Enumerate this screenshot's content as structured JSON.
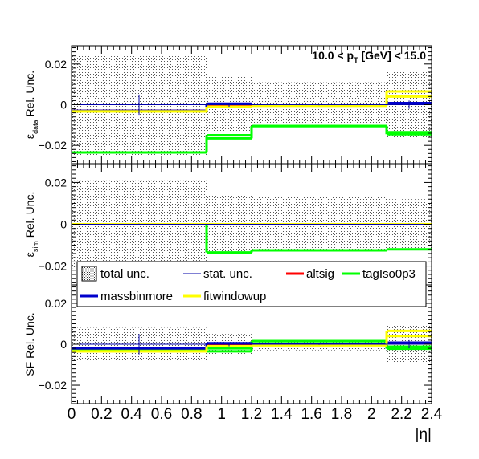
{
  "chart_data": {
    "type": "line",
    "kind": "step",
    "x_edges": [
      0,
      0.9,
      1.2,
      2.1,
      2.4
    ],
    "xlabel": "|η|",
    "xlim": [
      0,
      2.4
    ],
    "x_ticks": [
      0,
      0.2,
      0.4,
      0.6,
      0.8,
      1,
      1.2,
      1.4,
      1.6,
      1.8,
      2,
      2.2,
      2.4
    ],
    "x_tick_labels": [
      "0",
      "0.2",
      "0.4",
      "0.6",
      "0.8",
      "1",
      "1.2",
      "1.4",
      "1.6",
      "1.8",
      "2",
      "2.2",
      "2.4"
    ],
    "annotation": {
      "pre": "10.0 < p",
      "sub": "T",
      "post": " [GeV] < 15.0"
    },
    "colors": {
      "total_unc": "#555555",
      "stat_unc": "#0000aa",
      "altsig": "#ff0000",
      "tagIso0p3": "#00ff00",
      "massbinmore": "#0000cc",
      "fitwindowup": "#ffff00"
    },
    "legend": {
      "placement": "between lower panels",
      "entries": [
        {
          "key": "total_unc",
          "label": "total unc.",
          "style": "box"
        },
        {
          "key": "stat_unc",
          "label": "stat. unc.",
          "style": "thin"
        },
        {
          "key": "altsig",
          "label": "altsig",
          "style": "line"
        },
        {
          "key": "tagIso0p3",
          "label": "tagIso0p3",
          "style": "line"
        },
        {
          "key": "massbinmore",
          "label": "massbinmore",
          "style": "line"
        },
        {
          "key": "fitwindowup",
          "label": "fitwindowup",
          "style": "line"
        }
      ]
    },
    "panels": [
      {
        "id": "data",
        "ylabel": {
          "main": "ε",
          "sub": "data",
          "rest": " Rel. Unc."
        },
        "ylim": [
          -0.029,
          0.029
        ],
        "y_ticks": [
          -0.02,
          0,
          0.02
        ],
        "y_tick_labels": [
          "−0.02",
          "0",
          "0.02"
        ],
        "total_unc": [
          0.025,
          0.014,
          0.011,
          0.016
        ],
        "stat_unc": [
          0.005,
          0.001,
          0.0003,
          0.002
        ],
        "series": [
          {
            "key": "tagIso0p3",
            "values": [
              -0.0235,
              -0.0165,
              -0.0105,
              -0.0135
            ]
          },
          {
            "key": "tagIso0p3",
            "values": [
              -0.0235,
              -0.015,
              -0.0105,
              -0.0145
            ]
          },
          {
            "key": "altsig",
            "values": [
              -0.003,
              0,
              0,
              0.0005
            ]
          },
          {
            "key": "massbinmore",
            "values": [
              -0.003,
              0.0005,
              0,
              0.0008
            ]
          },
          {
            "key": "fitwindowup",
            "values": [
              -0.0033,
              -0.001,
              -0.0005,
              0.004
            ]
          },
          {
            "key": "fitwindowup",
            "values": [
              -0.0033,
              -0.001,
              -0.0005,
              0.0065
            ]
          }
        ]
      },
      {
        "id": "sim",
        "ylabel": {
          "main": "ε",
          "sub": "sim",
          "rest": " Rel. Unc."
        },
        "ylim": [
          -0.029,
          0.029
        ],
        "y_ticks": [
          -0.02,
          0,
          0.02
        ],
        "y_tick_labels": [
          "−0.02",
          "0",
          "0.02"
        ],
        "total_unc": [
          0.021,
          0.014,
          0.013,
          0.012
        ],
        "stat_unc": [
          0.0003,
          0.0002,
          0.0002,
          0.0003
        ],
        "series": [
          {
            "key": "tagIso0p3",
            "values": [
              0,
              -0.0135,
              -0.0125,
              -0.012
            ]
          },
          {
            "key": "altsig",
            "values": [
              0,
              0,
              0,
              0
            ]
          },
          {
            "key": "massbinmore",
            "values": [
              0,
              0,
              0,
              0
            ]
          },
          {
            "key": "fitwindowup",
            "values": [
              0,
              0,
              0,
              0
            ]
          }
        ]
      },
      {
        "id": "sf",
        "ylabel": {
          "main": "SF Rel. Unc.",
          "sub": "",
          "rest": ""
        },
        "ylim": [
          -0.029,
          0.029
        ],
        "y_ticks": [
          -0.02,
          0,
          0.02
        ],
        "y_tick_labels": [
          "−0.02",
          "0",
          "0.02"
        ],
        "total_unc": [
          0.008,
          0.005,
          0.003,
          0.009
        ],
        "stat_unc": [
          0.005,
          0.001,
          0.0003,
          0.002
        ],
        "series": [
          {
            "key": "tagIso0p3",
            "values": [
              -0.003,
              -0.002,
              0.0015,
              -0.0012
            ]
          },
          {
            "key": "tagIso0p3",
            "values": [
              -0.003,
              -0.0035,
              0.0015,
              -0.0022
            ]
          },
          {
            "key": "altsig",
            "values": [
              -0.002,
              0,
              0,
              0.0005
            ]
          },
          {
            "key": "massbinmore",
            "values": [
              -0.002,
              0.0005,
              0,
              0.0008
            ]
          },
          {
            "key": "fitwindowup",
            "values": [
              -0.0035,
              -0.001,
              -0.0005,
              0.004
            ]
          },
          {
            "key": "fitwindowup",
            "values": [
              -0.0035,
              -0.001,
              -0.0005,
              0.0065
            ]
          }
        ]
      }
    ]
  }
}
